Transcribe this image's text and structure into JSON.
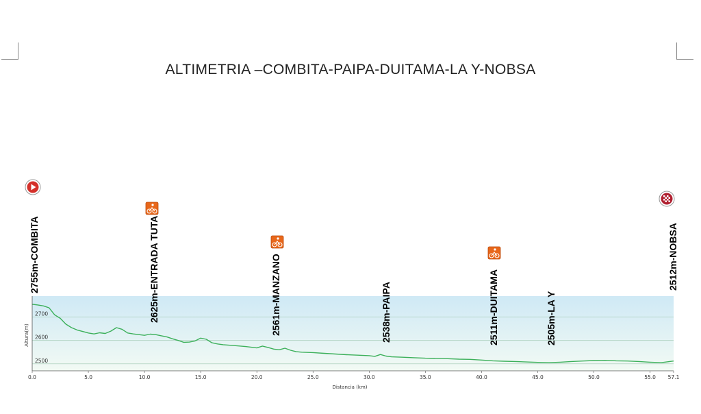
{
  "title": "ALTIMETRIA –COMBITA-PAIPA-DUITAMA-LA Y-NOBSA",
  "chart_data": {
    "type": "area",
    "xlabel": "Distancia (km)",
    "ylabel": "Altura(m)",
    "xlim": [
      0,
      57.1
    ],
    "ylim": [
      2470,
      2790
    ],
    "x_ticks": [
      "0.0",
      "5.0",
      "10.0",
      "15.0",
      "20.0",
      "25.0",
      "30.0",
      "35.0",
      "40.0",
      "45.0",
      "50.0",
      "55.0",
      "57.1"
    ],
    "y_ticks": [
      "2700",
      "2600",
      "2500"
    ],
    "profile": {
      "x": [
        0,
        0.5,
        1.0,
        1.5,
        2.0,
        2.5,
        3.0,
        3.5,
        4.0,
        5.0,
        5.5,
        6.0,
        6.5,
        7.0,
        7.5,
        8.0,
        8.5,
        9.0,
        9.5,
        10.0,
        10.5,
        11.0,
        11.5,
        12.0,
        12.5,
        13.0,
        13.5,
        14.0,
        14.5,
        15.0,
        15.5,
        16.0,
        16.5,
        17.0,
        18.0,
        19.0,
        20.0,
        20.5,
        21.0,
        21.5,
        22.0,
        22.5,
        23.0,
        23.5,
        24.0,
        25.0,
        26.0,
        27.0,
        28.0,
        29.0,
        30.0,
        30.5,
        31.0,
        31.5,
        32.0,
        33.0,
        34.0,
        35.0,
        36.0,
        37.0,
        38.0,
        39.0,
        40.0,
        41.0,
        42.0,
        43.0,
        44.0,
        45.0,
        46.0,
        47.0,
        48.0,
        49.0,
        50.0,
        51.0,
        52.0,
        53.0,
        54.0,
        55.0,
        56.0,
        57.1
      ],
      "y": [
        2755,
        2752,
        2748,
        2740,
        2710,
        2695,
        2670,
        2655,
        2645,
        2632,
        2628,
        2633,
        2630,
        2640,
        2655,
        2648,
        2632,
        2628,
        2625,
        2622,
        2627,
        2625,
        2620,
        2615,
        2607,
        2600,
        2592,
        2593,
        2598,
        2610,
        2605,
        2590,
        2585,
        2582,
        2578,
        2574,
        2568,
        2576,
        2570,
        2563,
        2560,
        2567,
        2558,
        2552,
        2550,
        2548,
        2545,
        2542,
        2539,
        2537,
        2535,
        2532,
        2540,
        2533,
        2530,
        2528,
        2526,
        2524,
        2523,
        2522,
        2520,
        2519,
        2516,
        2513,
        2511,
        2510,
        2508,
        2506,
        2505,
        2507,
        2510,
        2512,
        2514,
        2515,
        2513,
        2512,
        2510,
        2507,
        2505,
        2512
      ]
    },
    "waypoints": [
      {
        "km": 0.0,
        "label": "2755m-COMBITA",
        "icon": "start-flag-icon"
      },
      {
        "km": 10.6,
        "label": "2625m-ENTRADA TUTA",
        "icon": "cycling-sprint-icon"
      },
      {
        "km": 21.7,
        "label": "2561m-MANZANO",
        "icon": "cycling-sprint-icon"
      },
      {
        "km": 31.4,
        "label": "2538m-PAIPA",
        "icon": ""
      },
      {
        "km": 41.3,
        "label": "2511m-DUITAMA",
        "icon": "cycling-sprint-icon"
      },
      {
        "km": 46.6,
        "label": "2505m-LA Y",
        "icon": ""
      },
      {
        "km": 57.1,
        "label": "2512m-NOBSA",
        "icon": "finish-flag-icon"
      }
    ],
    "colors": {
      "line": "#3cb05a",
      "band_top": "#cfe9f5",
      "band_bottom": "#f2faf4",
      "sprint_icon": "#e8671a",
      "start_icon": "#d4302a",
      "finish_icon": "#b02030"
    }
  }
}
